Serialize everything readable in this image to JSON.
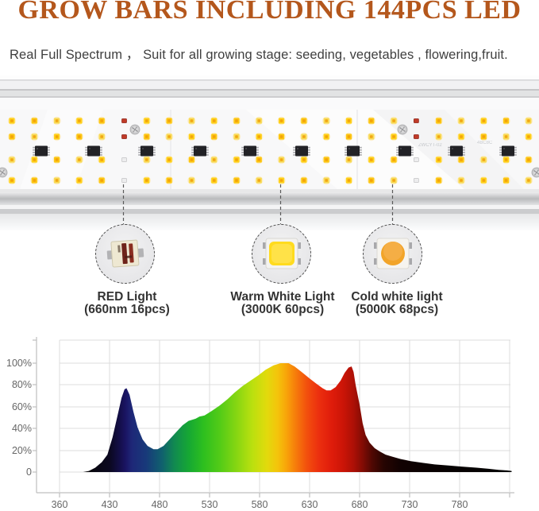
{
  "header": {
    "title": "GROW BARS INCLUDING 144PCS LED",
    "subtitle": "Real Full Spectrum ，  Suit for all growing stage: seeding, vegetables , flowering,fruit.",
    "title_color": "#b4571c"
  },
  "light_bar": {
    "pcb_marking_1": "ZWCYT-02",
    "pcb_marking_2": "4BC8C",
    "led_rows": 4,
    "led_columns": 24,
    "chip_count": 10
  },
  "callouts": {
    "items": [
      {
        "title": "RED Light",
        "subtitle": "(660nm 16pcs)",
        "chip": "red-led"
      },
      {
        "title": "Warm White Light",
        "subtitle": "(3000K 60pcs)",
        "chip": "warm-white-led"
      },
      {
        "title": "Cold white light",
        "subtitle": "(5000K 68pcs)",
        "chip": "cold-white-led"
      }
    ]
  },
  "chart_data": {
    "type": "area",
    "title": "",
    "xlabel": "",
    "ylabel": "",
    "x_tick_labels": [
      "360",
      "430",
      "480",
      "530",
      "580",
      "630",
      "680",
      "730",
      "780"
    ],
    "y_tick_labels": [
      "100%",
      "80%",
      "60%",
      "40%",
      "20%",
      "0"
    ],
    "x_axis_anchors_nm": [
      360,
      430,
      480,
      530,
      580,
      630,
      680,
      730,
      780,
      830
    ],
    "ylim_pct": [
      0,
      120
    ],
    "grid": true,
    "legend": false,
    "fill_style": "spectral rainbow gradient (UV-black through blue, green, yellow, red to far-red black)",
    "points_nm_pct": [
      [
        393,
        0
      ],
      [
        401,
        1
      ],
      [
        410,
        4
      ],
      [
        419,
        9
      ],
      [
        427,
        16
      ],
      [
        433,
        32
      ],
      [
        438,
        52
      ],
      [
        442,
        68
      ],
      [
        445,
        76
      ],
      [
        447,
        77
      ],
      [
        450,
        71
      ],
      [
        454,
        55
      ],
      [
        458,
        41
      ],
      [
        463,
        30
      ],
      [
        468,
        24
      ],
      [
        474,
        21
      ],
      [
        478,
        21
      ],
      [
        484,
        24
      ],
      [
        490,
        30
      ],
      [
        497,
        37
      ],
      [
        503,
        43
      ],
      [
        509,
        47
      ],
      [
        516,
        49
      ],
      [
        520,
        51
      ],
      [
        525,
        52
      ],
      [
        532,
        56
      ],
      [
        540,
        61
      ],
      [
        548,
        67
      ],
      [
        555,
        73
      ],
      [
        563,
        79
      ],
      [
        571,
        84
      ],
      [
        579,
        89
      ],
      [
        586,
        94
      ],
      [
        594,
        98
      ],
      [
        601,
        100
      ],
      [
        609,
        100
      ],
      [
        615,
        97
      ],
      [
        622,
        92
      ],
      [
        630,
        86
      ],
      [
        637,
        81
      ],
      [
        643,
        77
      ],
      [
        647,
        75
      ],
      [
        651,
        75
      ],
      [
        656,
        78
      ],
      [
        661,
        84
      ],
      [
        665,
        91
      ],
      [
        669,
        96
      ],
      [
        672,
        97
      ],
      [
        674,
        92
      ],
      [
        676,
        80
      ],
      [
        680,
        62
      ],
      [
        683,
        45
      ],
      [
        686,
        34
      ],
      [
        690,
        27
      ],
      [
        695,
        22
      ],
      [
        700,
        19
      ],
      [
        706,
        16
      ],
      [
        713,
        14
      ],
      [
        721,
        12
      ],
      [
        731,
        10
      ],
      [
        743,
        8.5
      ],
      [
        755,
        7
      ],
      [
        769,
        6
      ],
      [
        782,
        5
      ],
      [
        797,
        4
      ],
      [
        809,
        3
      ],
      [
        819,
        2
      ],
      [
        827,
        1.5
      ],
      [
        832,
        1
      ]
    ]
  }
}
